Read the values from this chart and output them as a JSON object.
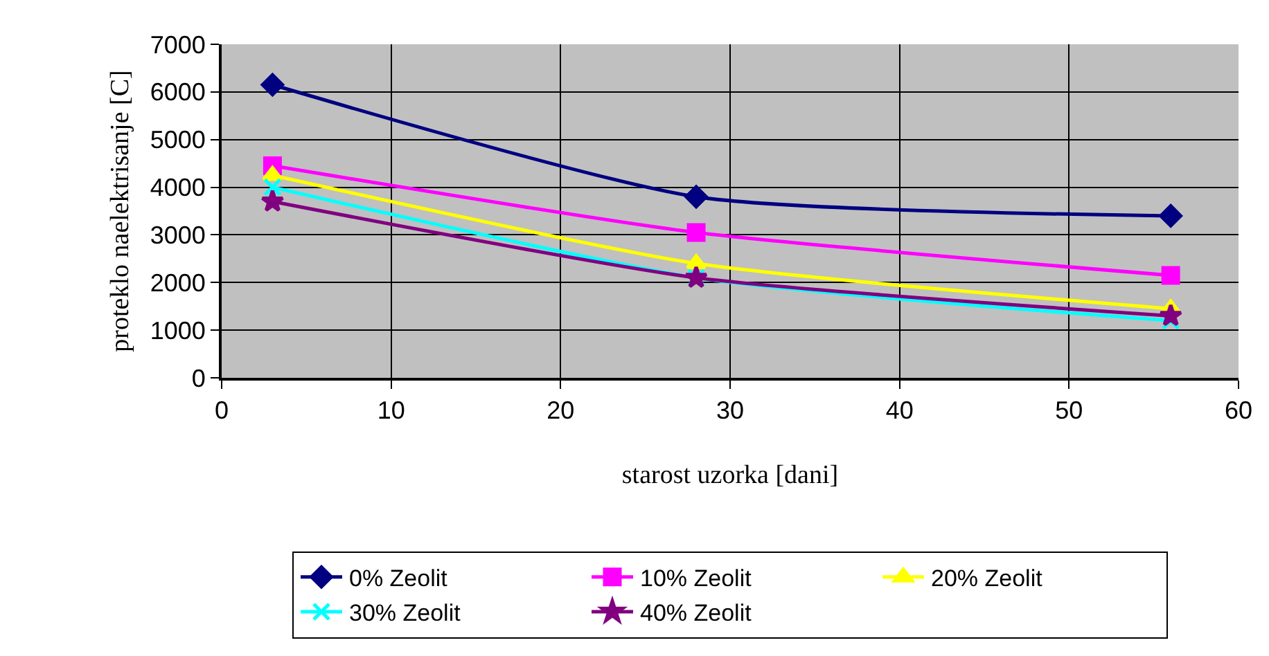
{
  "chart_data": {
    "type": "line",
    "xlabel": "starost uzorka [dani]",
    "ylabel": "proteklo naelektrisanje [C]",
    "x": [
      3,
      28,
      56
    ],
    "xlim": [
      0,
      60
    ],
    "xticks": [
      0,
      10,
      20,
      30,
      40,
      50,
      60
    ],
    "ylim": [
      0,
      7000
    ],
    "yticks": [
      0,
      1000,
      2000,
      3000,
      4000,
      5000,
      6000,
      7000
    ],
    "grid": true,
    "legend": "bottom",
    "line_style": "solid",
    "series": [
      {
        "name": "0% Zeolit",
        "color": "#000080",
        "marker": "diamond",
        "values": [
          6150,
          3800,
          3400
        ]
      },
      {
        "name": "10% Zeolit",
        "color": "#ff00ff",
        "marker": "square",
        "values": [
          4450,
          3050,
          2150
        ]
      },
      {
        "name": "20% Zeolit",
        "color": "#ffff00",
        "marker": "triangle",
        "values": [
          4250,
          2400,
          1450
        ]
      },
      {
        "name": "30% Zeolit",
        "color": "#00ffff",
        "marker": "cross",
        "values": [
          4000,
          2100,
          1200
        ]
      },
      {
        "name": "40% Zeolit",
        "color": "#800080",
        "marker": "star",
        "values": [
          3700,
          2100,
          1300
        ]
      }
    ]
  }
}
